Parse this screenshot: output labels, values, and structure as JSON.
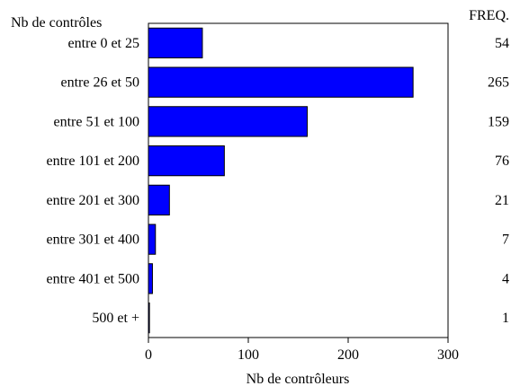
{
  "chart_data": {
    "type": "bar",
    "orientation": "horizontal",
    "y_axis_title": "Nb de contrôles",
    "freq_header": "FREQ.",
    "xlabel": "Nb de contrôleurs",
    "xlim": [
      0,
      300
    ],
    "xticks": [
      "0",
      "100",
      "200",
      "300"
    ],
    "grid": false,
    "bar_color": "#0000ff",
    "categories": [
      "entre 0 et 25",
      "entre 26 et 50",
      "entre 51 et 100",
      "entre 101 et 200",
      "entre 201 et 300",
      "entre 301 et 400",
      "entre 401 et 500",
      "500 et +"
    ],
    "values": [
      54,
      265,
      159,
      76,
      21,
      7,
      4,
      1
    ],
    "freq_labels": [
      "54",
      "265",
      "159",
      "76",
      "21",
      "7",
      "4",
      "1"
    ]
  }
}
